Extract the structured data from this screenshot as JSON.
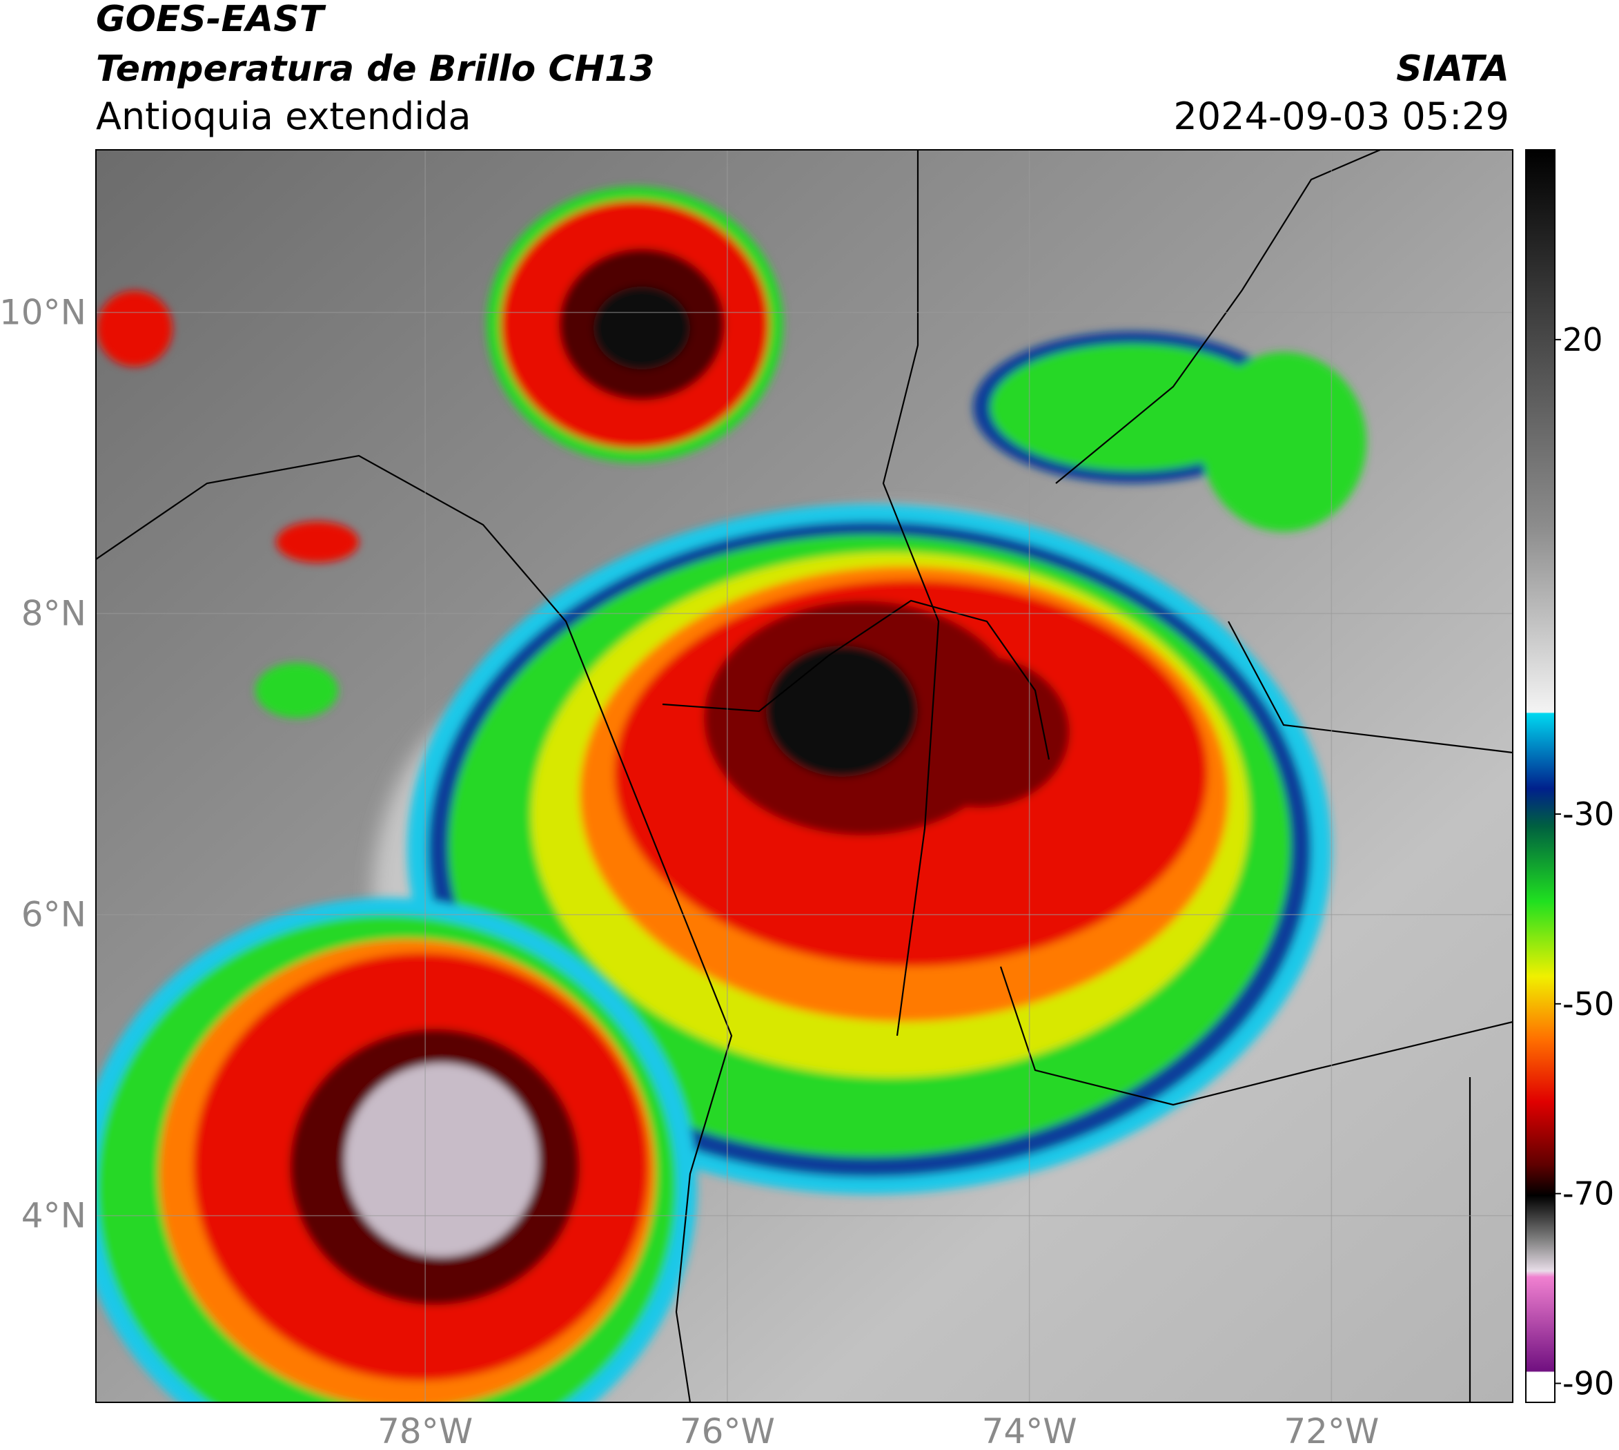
{
  "header": {
    "satellite": "GOES-EAST",
    "product": "Temperatura de Brillo CH13",
    "region": "Antioquia extendida",
    "source": "SIATA",
    "datetime": "2024-09-03 05:29"
  },
  "map": {
    "xlim": [
      -80.18,
      -70.8
    ],
    "ylim": [
      2.76,
      11.08
    ],
    "xticks": [
      {
        "value": -78,
        "label": "78°W"
      },
      {
        "value": -76,
        "label": "76°W"
      },
      {
        "value": -74,
        "label": "74°W"
      },
      {
        "value": -72,
        "label": "72°W"
      }
    ],
    "yticks": [
      {
        "value": 4,
        "label": "4°N"
      },
      {
        "value": 6,
        "label": "6°N"
      },
      {
        "value": 8,
        "label": "8°N"
      },
      {
        "value": 10,
        "label": "10°N"
      }
    ]
  },
  "colorbar": {
    "lim": [
      -92,
      40
    ],
    "ticks": [
      20,
      -30,
      -50,
      -70,
      -90
    ]
  }
}
